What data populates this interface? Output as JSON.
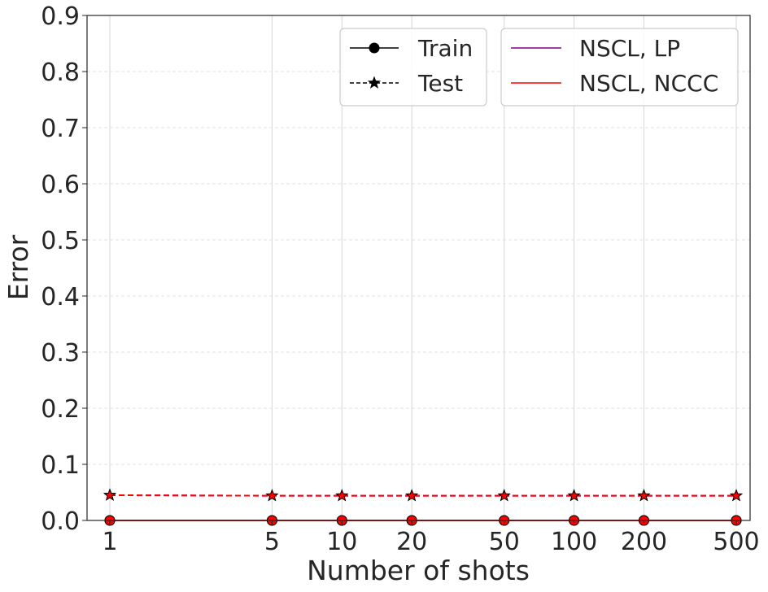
{
  "chart_data": {
    "type": "line",
    "xlabel": "Number of shots",
    "ylabel": "Error",
    "x_scale": "log",
    "x": [
      1,
      5,
      10,
      20,
      50,
      100,
      200,
      500
    ],
    "x_tick_labels": [
      "1",
      "5",
      "10",
      "20",
      "50",
      "100",
      "200",
      "500"
    ],
    "ylim": [
      0,
      0.9
    ],
    "y_ticks": [
      0.0,
      0.1,
      0.2,
      0.3,
      0.4,
      0.5,
      0.6,
      0.7,
      0.8,
      0.9
    ],
    "y_tick_labels": [
      "0.0",
      "0.1",
      "0.2",
      "0.3",
      "0.4",
      "0.5",
      "0.6",
      "0.7",
      "0.8",
      "0.9"
    ],
    "grid": true,
    "series": [
      {
        "name": "NSCL, LP",
        "split": "Train",
        "color": "#800080",
        "values": [
          0.0,
          0.0,
          0.0,
          0.0,
          0.0,
          0.0,
          0.0,
          0.0
        ]
      },
      {
        "name": "NSCL, LP",
        "split": "Test",
        "color": "#800080",
        "values": [
          0.045,
          0.044,
          0.044,
          0.044,
          0.044,
          0.044,
          0.044,
          0.044
        ]
      },
      {
        "name": "NSCL, NCCC",
        "split": "Train",
        "color": "#ff0000",
        "values": [
          0.0,
          0.0,
          0.0,
          0.0,
          0.0,
          0.0,
          0.0,
          0.0
        ]
      },
      {
        "name": "NSCL, NCCC",
        "split": "Test",
        "color": "#ff0000",
        "values": [
          0.045,
          0.044,
          0.044,
          0.044,
          0.044,
          0.044,
          0.044,
          0.044
        ]
      }
    ],
    "legend_style": {
      "placement": "top-right",
      "entries": [
        {
          "label": "Train",
          "marker": "circle",
          "linestyle": "solid"
        },
        {
          "label": "Test",
          "marker": "star",
          "linestyle": "dashed"
        }
      ]
    },
    "legend_methods": {
      "placement": "top-right",
      "entries": [
        {
          "label": "NSCL, LP",
          "color": "#800080"
        },
        {
          "label": "NSCL, NCCC",
          "color": "#ff0000"
        }
      ]
    }
  }
}
